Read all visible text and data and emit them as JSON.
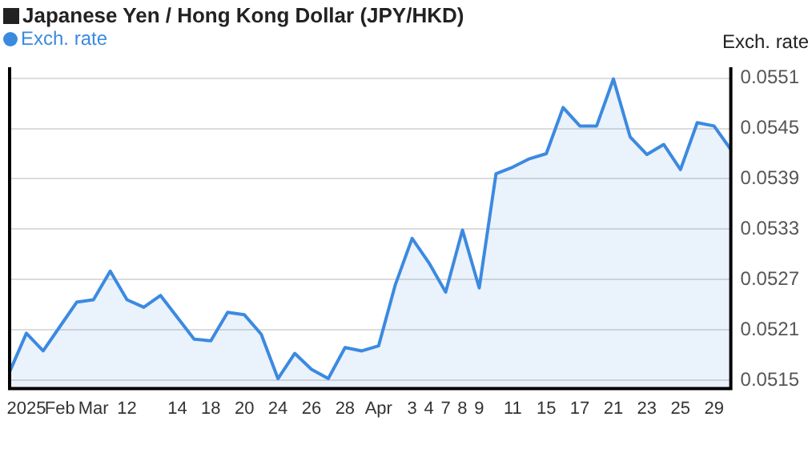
{
  "chart_data": {
    "type": "area",
    "title": "Japanese Yen / Hong Kong Dollar (JPY/HKD)",
    "ylabel": "Exch. rate",
    "categories": [
      null,
      "2025",
      null,
      "Feb",
      null,
      "Mar",
      null,
      "12",
      null,
      null,
      "14",
      null,
      "18",
      null,
      "20",
      null,
      "24",
      null,
      "26",
      null,
      "28",
      null,
      "Apr",
      null,
      "3",
      "4",
      "7",
      "8",
      "9",
      null,
      "11",
      null,
      "15",
      null,
      "17",
      null,
      "21",
      null,
      "23",
      null,
      "25",
      null,
      "29",
      null
    ],
    "series": [
      {
        "name": "Exch. rate",
        "color": "#3c8ae0",
        "values": [
          0.0516,
          0.05206,
          0.05185,
          0.05214,
          0.05243,
          0.05246,
          0.0528,
          0.05246,
          0.05237,
          0.05251,
          0.05225,
          0.05199,
          0.05197,
          0.05231,
          0.05228,
          0.05205,
          0.05152,
          0.05182,
          0.05163,
          0.05152,
          0.05189,
          0.05185,
          0.05191,
          0.05264,
          0.05319,
          0.0529,
          0.05255,
          0.05329,
          0.0526,
          0.05396,
          0.05404,
          0.05414,
          0.0542,
          0.05475,
          0.05453,
          0.05453,
          0.05509,
          0.0544,
          0.05419,
          0.05431,
          0.05401,
          0.05457,
          0.05453,
          0.05425
        ]
      }
    ],
    "ylim": [
      0.0514,
      0.05523
    ],
    "yticks": [
      0.0515,
      0.0521,
      0.0527,
      0.0533,
      0.0539,
      0.0545,
      0.0551
    ],
    "grid": "y",
    "legend": "top left"
  }
}
